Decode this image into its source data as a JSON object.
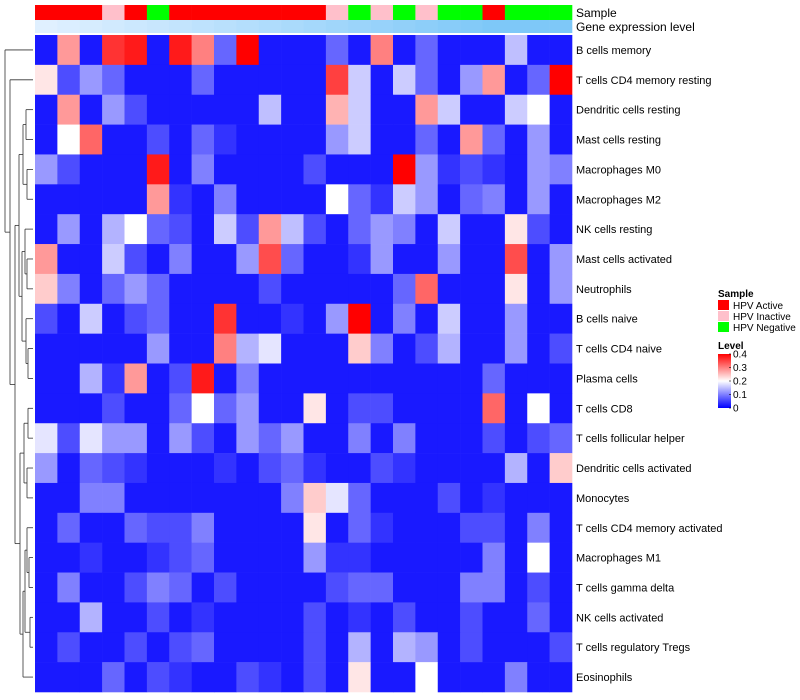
{
  "chart_data": {
    "type": "heatmap",
    "title": "",
    "rows": [
      "B cells memory",
      "T cells CD4 memory resting",
      "Dendritic cells resting",
      "Mast cells resting",
      "Macrophages M0",
      "Macrophages M2",
      "NK cells resting",
      "Mast cells activated",
      "Neutrophils",
      "B cells naive",
      "T cells CD4 naive",
      "Plasma cells",
      "T cells CD8",
      "T cells follicular helper",
      "Dendritic cells activated",
      "Monocytes",
      "T cells CD4 memory activated",
      "Macrophages M1",
      "T cells gamma delta",
      "NK cells activated",
      "T cells regulatory  Tregs",
      "Eosinophils"
    ],
    "annotation_tracks": [
      {
        "name": "Sample",
        "values": [
          "HPV Active",
          "HPV Active",
          "HPV Active",
          "HPV Inactive",
          "HPV Active",
          "HPV Negative",
          "HPV Active",
          "HPV Active",
          "HPV Active",
          "HPV Active",
          "HPV Active",
          "HPV Active",
          "HPV Active",
          "HPV Inactive",
          "HPV Negative",
          "HPV Inactive",
          "HPV Negative",
          "HPV Inactive",
          "HPV Negative",
          "HPV Negative",
          "HPV Active",
          "HPV Negative",
          "HPV Negative",
          "HPV Negative"
        ]
      },
      {
        "name": "Gene expression level",
        "values": [
          0.0,
          0.05,
          0.1,
          0.15,
          0.2,
          0.25,
          0.3,
          0.35,
          0.4,
          0.45,
          0.5,
          0.55,
          0.6,
          0.65,
          0.7,
          0.75,
          0.8,
          0.85,
          0.9,
          0.95,
          1.0,
          1.0,
          1.0,
          1.0
        ]
      }
    ],
    "legend": {
      "sample_title": "Sample",
      "sample_entries": [
        {
          "label": "HPV Active",
          "color": "#ff0000"
        },
        {
          "label": "HPV Inactive",
          "color": "#ffc0cb"
        },
        {
          "label": "HPV Negative",
          "color": "#00ff00"
        }
      ],
      "level_title": "Level",
      "level_ticks": [
        "0.4",
        "0.3",
        "0.2",
        "0.1",
        "0"
      ],
      "level_tick_values": [
        0.4,
        0.3,
        0.2,
        0.1,
        0
      ],
      "level_range": [
        0,
        0.4
      ],
      "placement": "right"
    },
    "colors": {
      "low": "#0000ff",
      "mid": "#ffffff",
      "high": "#ff0000",
      "gradient_light": "#e0f0ff",
      "gradient_dark": "#7ec8f8"
    },
    "values": [
      [
        0.02,
        0.28,
        0.02,
        0.36,
        0.38,
        0.02,
        0.38,
        0.3,
        0.08,
        0.4,
        0.02,
        0.02,
        0.02,
        0.08,
        0.02,
        0.3,
        0.02,
        0.08,
        0.02,
        0.02,
        0.02,
        0.15,
        0.02,
        0.02
      ],
      [
        0.22,
        0.06,
        0.12,
        0.08,
        0.02,
        0.02,
        0.02,
        0.08,
        0.02,
        0.02,
        0.02,
        0.02,
        0.02,
        0.35,
        0.16,
        0.02,
        0.16,
        0.08,
        0.02,
        0.12,
        0.28,
        0.02,
        0.08,
        0.4
      ],
      [
        0.02,
        0.28,
        0.02,
        0.12,
        0.06,
        0.02,
        0.02,
        0.02,
        0.02,
        0.02,
        0.15,
        0.02,
        0.02,
        0.26,
        0.16,
        0.02,
        0.02,
        0.28,
        0.16,
        0.02,
        0.02,
        0.16,
        0.2,
        0.02
      ],
      [
        0.02,
        0.2,
        0.32,
        0.02,
        0.02,
        0.06,
        0.02,
        0.08,
        0.04,
        0.02,
        0.02,
        0.02,
        0.02,
        0.12,
        0.16,
        0.02,
        0.02,
        0.08,
        0.02,
        0.28,
        0.08,
        0.02,
        0.12,
        0.02
      ],
      [
        0.12,
        0.06,
        0.02,
        0.02,
        0.02,
        0.38,
        0.02,
        0.1,
        0.02,
        0.02,
        0.02,
        0.02,
        0.06,
        0.02,
        0.02,
        0.02,
        0.4,
        0.12,
        0.04,
        0.06,
        0.04,
        0.02,
        0.12,
        0.1
      ],
      [
        0.02,
        0.02,
        0.02,
        0.02,
        0.02,
        0.28,
        0.04,
        0.02,
        0.1,
        0.02,
        0.02,
        0.02,
        0.02,
        0.2,
        0.08,
        0.04,
        0.16,
        0.12,
        0.02,
        0.08,
        0.1,
        0.02,
        0.12,
        0.02
      ],
      [
        0.02,
        0.12,
        0.02,
        0.14,
        0.2,
        0.08,
        0.06,
        0.02,
        0.16,
        0.06,
        0.28,
        0.15,
        0.06,
        0.02,
        0.08,
        0.12,
        0.1,
        0.02,
        0.16,
        0.02,
        0.02,
        0.22,
        0.06,
        0.02
      ],
      [
        0.28,
        0.02,
        0.02,
        0.16,
        0.06,
        0.02,
        0.1,
        0.02,
        0.02,
        0.12,
        0.34,
        0.08,
        0.02,
        0.02,
        0.04,
        0.12,
        0.02,
        0.02,
        0.12,
        0.02,
        0.02,
        0.34,
        0.02,
        0.12
      ],
      [
        0.24,
        0.1,
        0.02,
        0.08,
        0.12,
        0.08,
        0.02,
        0.02,
        0.02,
        0.02,
        0.06,
        0.02,
        0.02,
        0.02,
        0.02,
        0.02,
        0.08,
        0.32,
        0.02,
        0.02,
        0.02,
        0.22,
        0.02,
        0.12
      ],
      [
        0.06,
        0.02,
        0.16,
        0.02,
        0.06,
        0.08,
        0.02,
        0.02,
        0.36,
        0.02,
        0.02,
        0.04,
        0.02,
        0.12,
        0.4,
        0.02,
        0.1,
        0.02,
        0.16,
        0.02,
        0.02,
        0.12,
        0.02,
        0.02
      ],
      [
        0.02,
        0.02,
        0.02,
        0.02,
        0.02,
        0.12,
        0.02,
        0.02,
        0.3,
        0.14,
        0.18,
        0.02,
        0.02,
        0.02,
        0.24,
        0.1,
        0.02,
        0.06,
        0.14,
        0.02,
        0.02,
        0.12,
        0.02,
        0.06
      ],
      [
        0.02,
        0.02,
        0.14,
        0.04,
        0.28,
        0.02,
        0.06,
        0.38,
        0.02,
        0.1,
        0.02,
        0.02,
        0.02,
        0.02,
        0.02,
        0.02,
        0.02,
        0.02,
        0.02,
        0.02,
        0.08,
        0.02,
        0.02,
        0.02
      ],
      [
        0.02,
        0.02,
        0.02,
        0.06,
        0.02,
        0.02,
        0.08,
        0.2,
        0.08,
        0.12,
        0.02,
        0.02,
        0.22,
        0.02,
        0.06,
        0.06,
        0.02,
        0.02,
        0.02,
        0.02,
        0.32,
        0.02,
        0.2,
        0.02
      ],
      [
        0.18,
        0.06,
        0.18,
        0.12,
        0.12,
        0.02,
        0.12,
        0.06,
        0.02,
        0.12,
        0.08,
        0.12,
        0.02,
        0.02,
        0.1,
        0.02,
        0.1,
        0.02,
        0.02,
        0.02,
        0.06,
        0.02,
        0.06,
        0.08
      ],
      [
        0.12,
        0.02,
        0.08,
        0.06,
        0.04,
        0.02,
        0.02,
        0.02,
        0.04,
        0.02,
        0.06,
        0.08,
        0.04,
        0.02,
        0.02,
        0.06,
        0.04,
        0.02,
        0.02,
        0.02,
        0.02,
        0.14,
        0.02,
        0.24
      ],
      [
        0.02,
        0.02,
        0.1,
        0.1,
        0.02,
        0.02,
        0.02,
        0.02,
        0.02,
        0.02,
        0.02,
        0.1,
        0.24,
        0.18,
        0.08,
        0.02,
        0.02,
        0.02,
        0.06,
        0.02,
        0.04,
        0.02,
        0.02,
        0.02
      ],
      [
        0.02,
        0.08,
        0.02,
        0.02,
        0.08,
        0.06,
        0.06,
        0.1,
        0.02,
        0.02,
        0.02,
        0.02,
        0.22,
        0.02,
        0.08,
        0.04,
        0.02,
        0.02,
        0.02,
        0.06,
        0.06,
        0.02,
        0.1,
        0.02
      ],
      [
        0.02,
        0.02,
        0.04,
        0.02,
        0.02,
        0.04,
        0.06,
        0.08,
        0.02,
        0.02,
        0.02,
        0.02,
        0.12,
        0.04,
        0.04,
        0.02,
        0.02,
        0.02,
        0.02,
        0.02,
        0.1,
        0.02,
        0.2,
        0.02
      ],
      [
        0.02,
        0.1,
        0.02,
        0.02,
        0.06,
        0.1,
        0.08,
        0.02,
        0.06,
        0.02,
        0.02,
        0.02,
        0.02,
        0.06,
        0.08,
        0.08,
        0.02,
        0.02,
        0.02,
        0.1,
        0.1,
        0.02,
        0.06,
        0.02
      ],
      [
        0.02,
        0.02,
        0.14,
        0.02,
        0.02,
        0.06,
        0.02,
        0.04,
        0.02,
        0.02,
        0.02,
        0.02,
        0.06,
        0.02,
        0.04,
        0.02,
        0.06,
        0.02,
        0.02,
        0.06,
        0.02,
        0.02,
        0.08,
        0.02
      ],
      [
        0.02,
        0.06,
        0.02,
        0.02,
        0.06,
        0.02,
        0.06,
        0.08,
        0.02,
        0.02,
        0.02,
        0.02,
        0.06,
        0.02,
        0.14,
        0.02,
        0.14,
        0.12,
        0.02,
        0.06,
        0.02,
        0.02,
        0.02,
        0.06
      ],
      [
        0.02,
        0.02,
        0.02,
        0.08,
        0.02,
        0.06,
        0.04,
        0.02,
        0.02,
        0.06,
        0.04,
        0.02,
        0.06,
        0.02,
        0.22,
        0.02,
        0.02,
        0.2,
        0.02,
        0.02,
        0.02,
        0.1,
        0.02,
        0.02
      ]
    ]
  }
}
